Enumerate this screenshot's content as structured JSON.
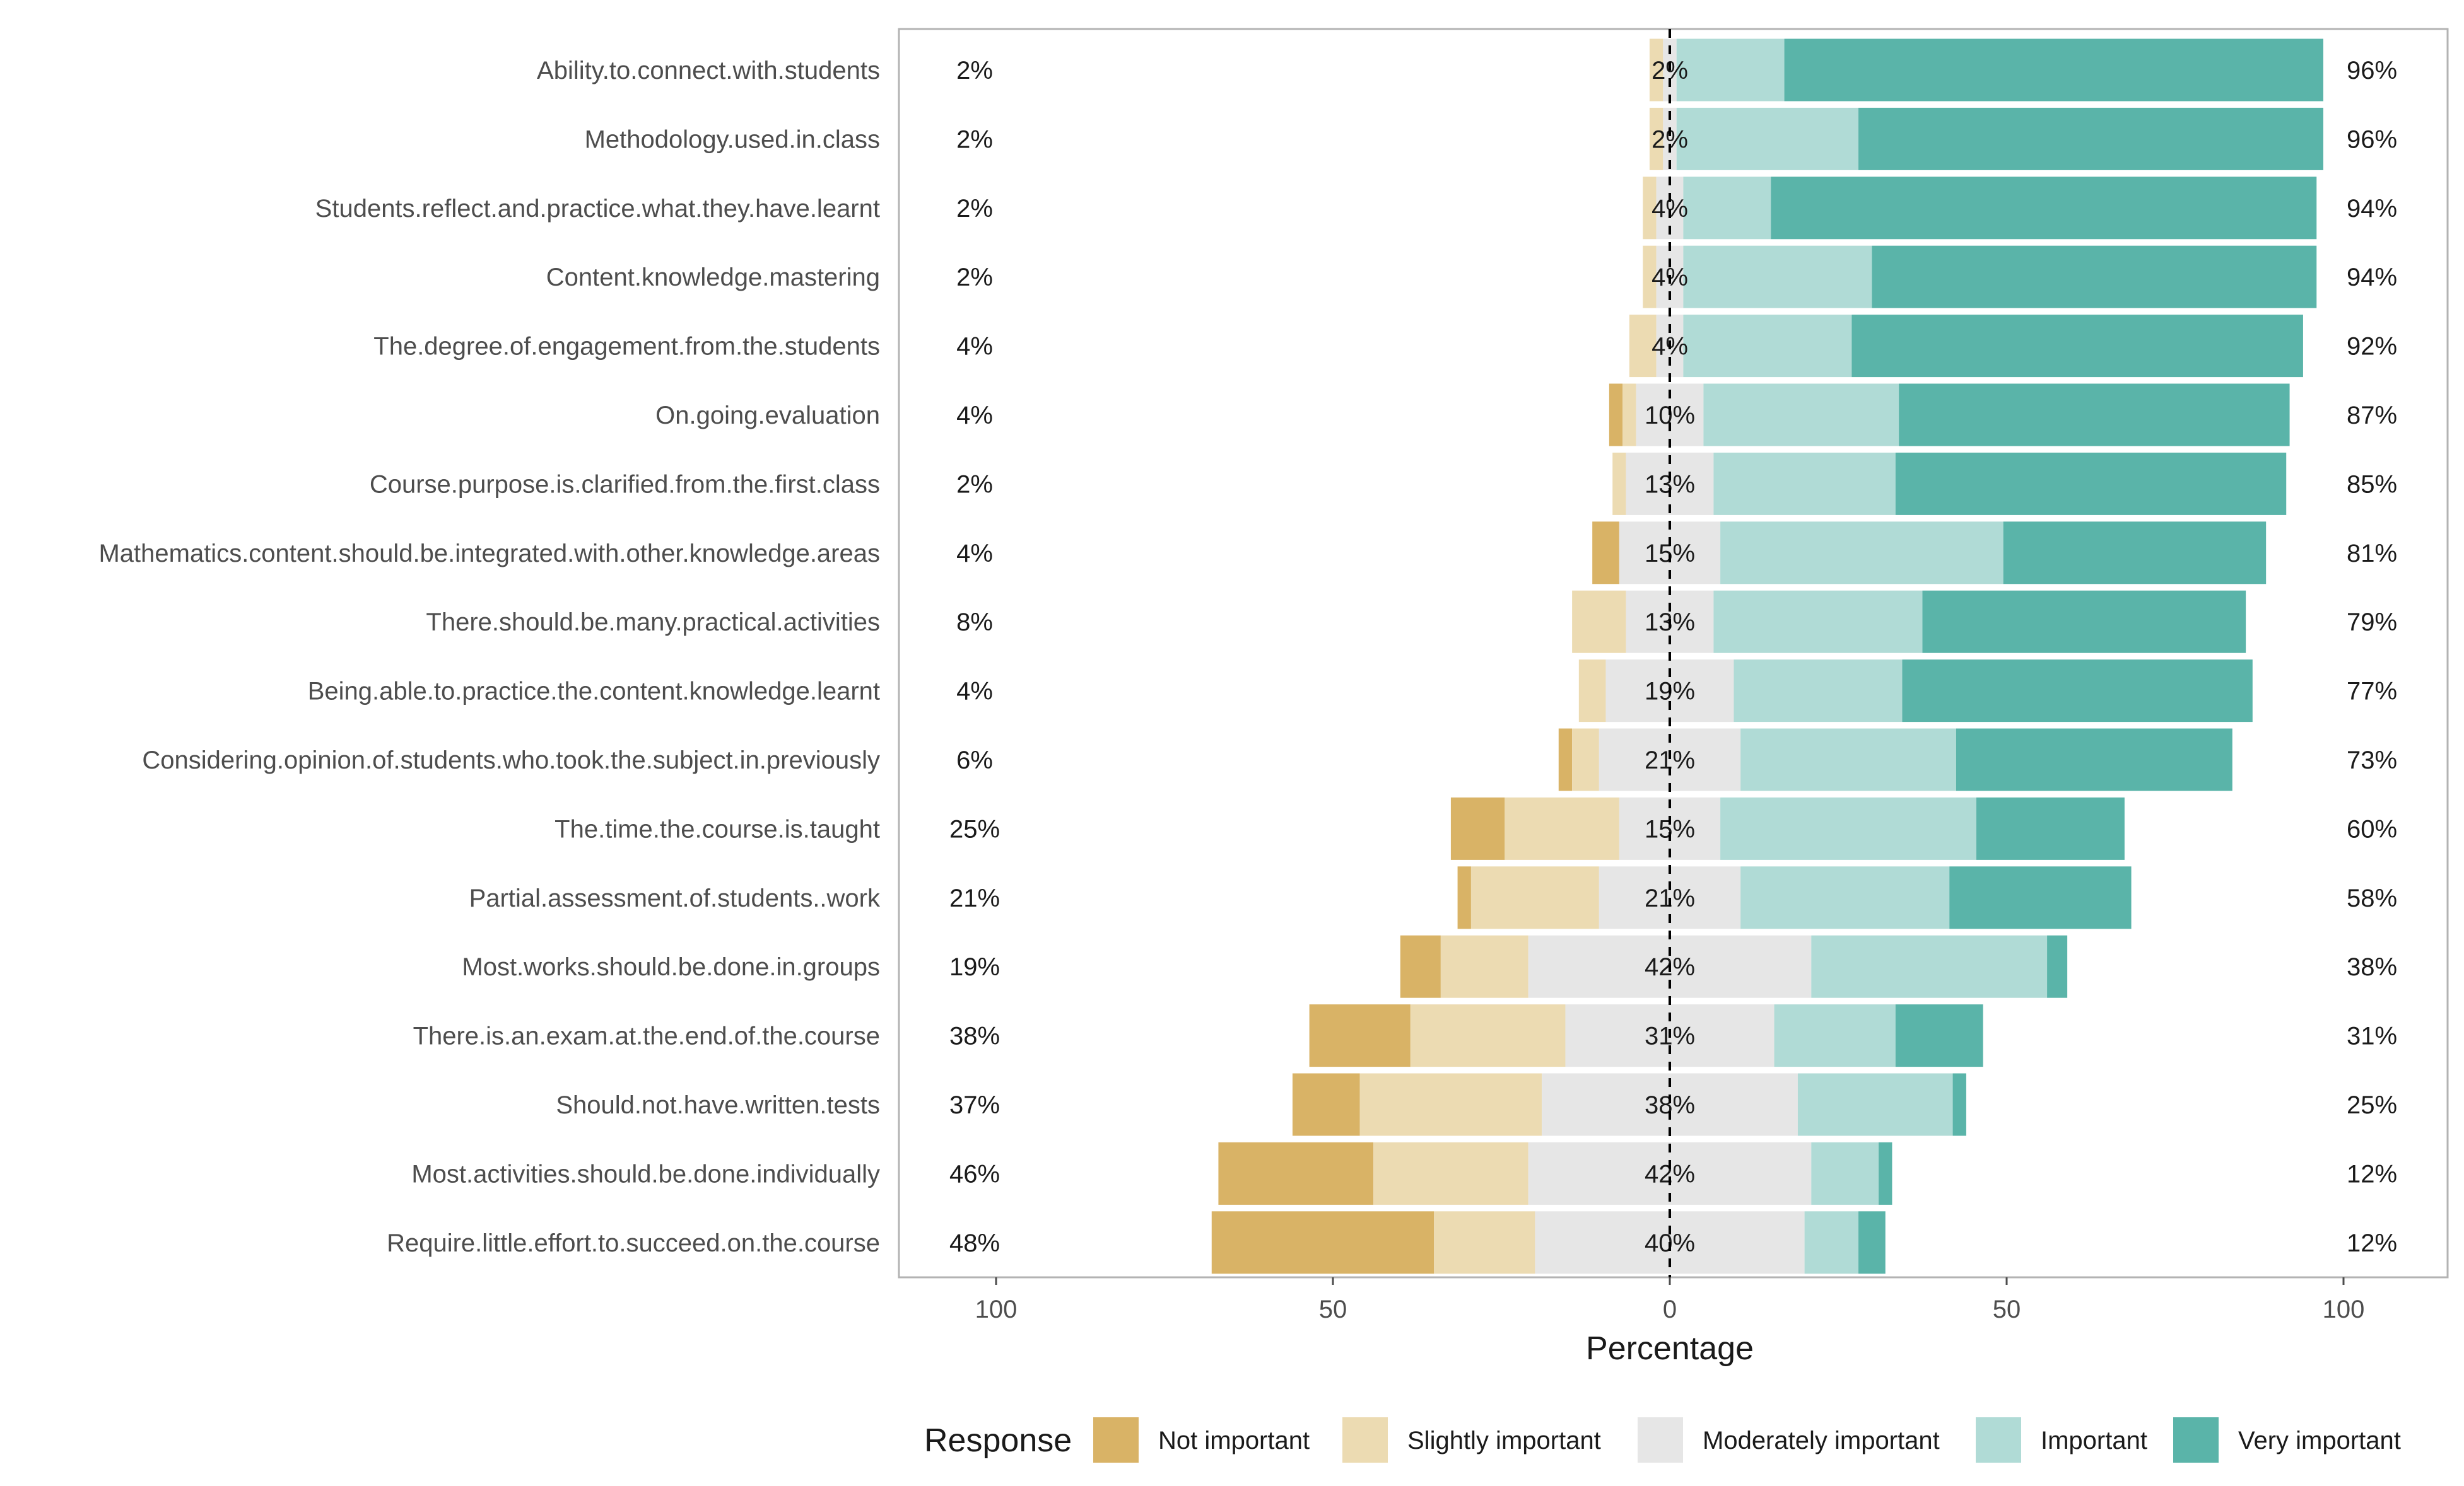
{
  "chart_data": {
    "type": "bar",
    "orientation": "horizontal",
    "stacked": "diverging",
    "xlabel": "Percentage",
    "xlim": [
      -100,
      100
    ],
    "x_ticks": [
      -100,
      -50,
      0,
      50,
      100
    ],
    "x_tick_labels": [
      "100",
      "50",
      "0",
      "50",
      "100"
    ],
    "grid": false,
    "legend": {
      "title": "Response",
      "placement": "bottom",
      "entries": [
        "Not important",
        "Slightly important",
        "Moderately important",
        "Important",
        "Very important"
      ]
    },
    "colors": {
      "Not important": "#d9b366",
      "Slightly important": "#ecdbb2",
      "Moderately important": "#e6e6e6",
      "Important": "#b0dbd6",
      "Very important": "#5ab4a9"
    },
    "categories": [
      "Ability.to.connect.with.students",
      "Methodology.used.in.class",
      "Students.reflect.and.practice.what.they.have.learnt",
      "Content.knowledge.mastering",
      "The.degree.of.engagement.from.the.students",
      "On.going.evaluation",
      "Course.purpose.is.clarified.from.the.first.class",
      "Mathematics.content.should.be.integrated.with.other.knowledge.areas",
      "There.should.be.many.practical.activities",
      "Being.able.to.practice.the.content.knowledge.learnt",
      "Considering.opinion.of.students.who.took.the.subject.in.previously",
      "The.time.the.course.is.taught",
      "Partial.assessment.of.students..work",
      "Most.works.should.be.done.in.groups",
      "There.is.an.exam.at.the.end.of.the.course",
      "Should.not.have.written.tests",
      "Most.activities.should.be.done.individually",
      "Require.little.effort.to.succeed.on.the.course"
    ],
    "series": [
      {
        "name": "Not important",
        "values": [
          0,
          0,
          0,
          0,
          0,
          2,
          0,
          4,
          0,
          0,
          2,
          8,
          2,
          6,
          15,
          10,
          23,
          33
        ]
      },
      {
        "name": "Slightly important",
        "values": [
          2,
          2,
          2,
          2,
          4,
          2,
          2,
          0,
          8,
          4,
          4,
          17,
          19,
          13,
          23,
          27,
          23,
          15
        ]
      },
      {
        "name": "Moderately important",
        "values": [
          2,
          2,
          4,
          4,
          4,
          10,
          13,
          15,
          13,
          19,
          21,
          15,
          21,
          42,
          31,
          38,
          42,
          40
        ]
      },
      {
        "name": "Important",
        "values": [
          16,
          27,
          13,
          28,
          25,
          29,
          27,
          42,
          31,
          25,
          32,
          38,
          31,
          35,
          18,
          23,
          10,
          8
        ]
      },
      {
        "name": "Very important",
        "values": [
          80,
          69,
          81,
          66,
          67,
          58,
          58,
          39,
          48,
          52,
          41,
          22,
          27,
          3,
          13,
          2,
          2,
          4
        ]
      }
    ],
    "labels_left": [
      "2%",
      "2%",
      "2%",
      "2%",
      "4%",
      "4%",
      "2%",
      "4%",
      "8%",
      "4%",
      "6%",
      "25%",
      "21%",
      "19%",
      "38%",
      "37%",
      "46%",
      "48%"
    ],
    "labels_center": [
      "2%",
      "2%",
      "4%",
      "4%",
      "4%",
      "10%",
      "13%",
      "15%",
      "13%",
      "19%",
      "21%",
      "15%",
      "21%",
      "42%",
      "31%",
      "38%",
      "42%",
      "40%"
    ],
    "labels_right": [
      "96%",
      "96%",
      "94%",
      "94%",
      "92%",
      "87%",
      "85%",
      "81%",
      "79%",
      "77%",
      "73%",
      "60%",
      "58%",
      "38%",
      "31%",
      "25%",
      "12%",
      "12%"
    ]
  }
}
